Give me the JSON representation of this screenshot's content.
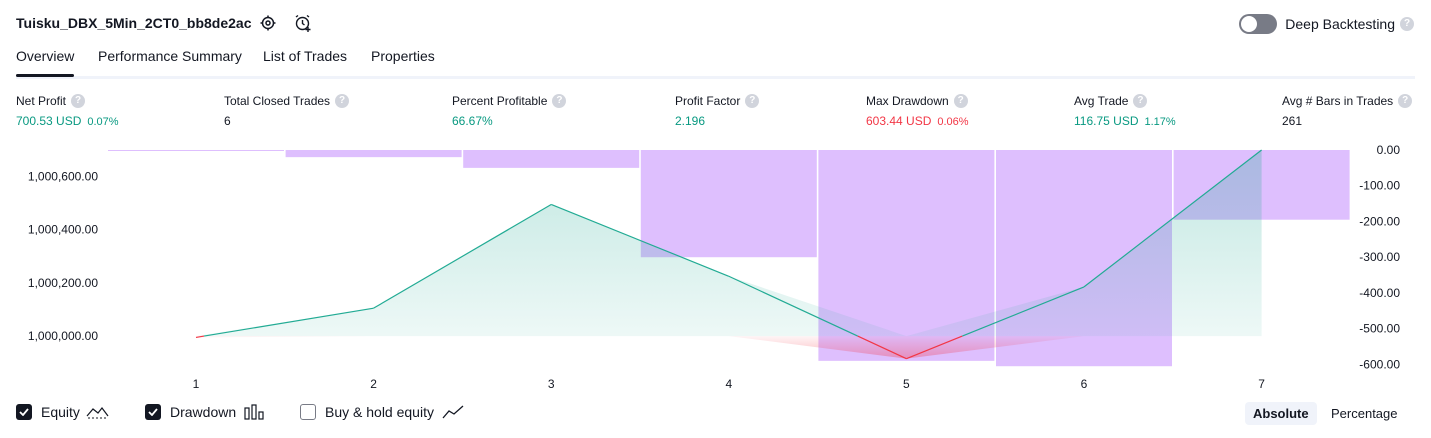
{
  "header": {
    "title": "Tuisku_DBX_5Min_2CT0_bb8de2ac",
    "settings_icon": "gear-icon",
    "add_alert_icon": "alarm-plus-icon",
    "deep_backtesting_label": "Deep Backtesting",
    "deep_backtesting_on": false,
    "help_glyph": "?"
  },
  "tabs": [
    {
      "label": "Overview",
      "active": true
    },
    {
      "label": "Performance Summary",
      "active": false
    },
    {
      "label": "List of Trades",
      "active": false
    },
    {
      "label": "Properties",
      "active": false
    }
  ],
  "stats": [
    {
      "label": "Net Profit",
      "value": "700.53 USD",
      "pct": "0.07%",
      "color": "#089981"
    },
    {
      "label": "Total Closed Trades",
      "value": "6",
      "pct": "",
      "color": "#131722"
    },
    {
      "label": "Percent Profitable",
      "value": "66.67%",
      "pct": "",
      "color": "#089981"
    },
    {
      "label": "Profit Factor",
      "value": "2.196",
      "pct": "",
      "color": "#089981"
    },
    {
      "label": "Max Drawdown",
      "value": "603.44 USD",
      "pct": "0.06%",
      "color": "#f23645"
    },
    {
      "label": "Avg Trade",
      "value": "116.75 USD",
      "pct": "1.17%",
      "color": "#089981"
    },
    {
      "label": "Avg # Bars in Trades",
      "value": "261",
      "pct": "",
      "color": "#131722"
    }
  ],
  "chart_data": {
    "type": "line",
    "x": [
      1,
      2,
      3,
      4,
      5,
      6,
      7
    ],
    "equity": [
      999995,
      1000105,
      1000495,
      1000225,
      999915,
      1000185,
      1000700
    ],
    "drawdown": [
      0,
      -20,
      -50,
      -300,
      -590,
      -605,
      -195
    ],
    "left_axis_ticks": [
      "1,000,600.00",
      "1,000,400.00",
      "1,000,200.00",
      "1,000,000.00"
    ],
    "left_axis_values": [
      1000600,
      1000400,
      1000200,
      1000000
    ],
    "right_axis_ticks": [
      "0.00",
      "-100.00",
      "-200.00",
      "-300.00",
      "-400.00",
      "-500.00",
      "-600.00"
    ],
    "right_axis_values": [
      0,
      -100,
      -200,
      -300,
      -400,
      -500,
      -600
    ],
    "baseline": 1000000,
    "left_ylim": [
      999910,
      1000700
    ],
    "right_ylim": [
      -610,
      0
    ],
    "colors": {
      "equity": "#22ab94",
      "equity_below": "#f23645",
      "drawdown": "#d8b4fe"
    }
  },
  "legend": {
    "items": [
      {
        "label": "Equity",
        "checked": true,
        "icon": "area-line-icon"
      },
      {
        "label": "Drawdown",
        "checked": true,
        "icon": "bars-icon"
      },
      {
        "label": "Buy & hold equity",
        "checked": false,
        "icon": "line-icon"
      }
    ],
    "absolute_label": "Absolute",
    "percentage_label": "Percentage"
  }
}
